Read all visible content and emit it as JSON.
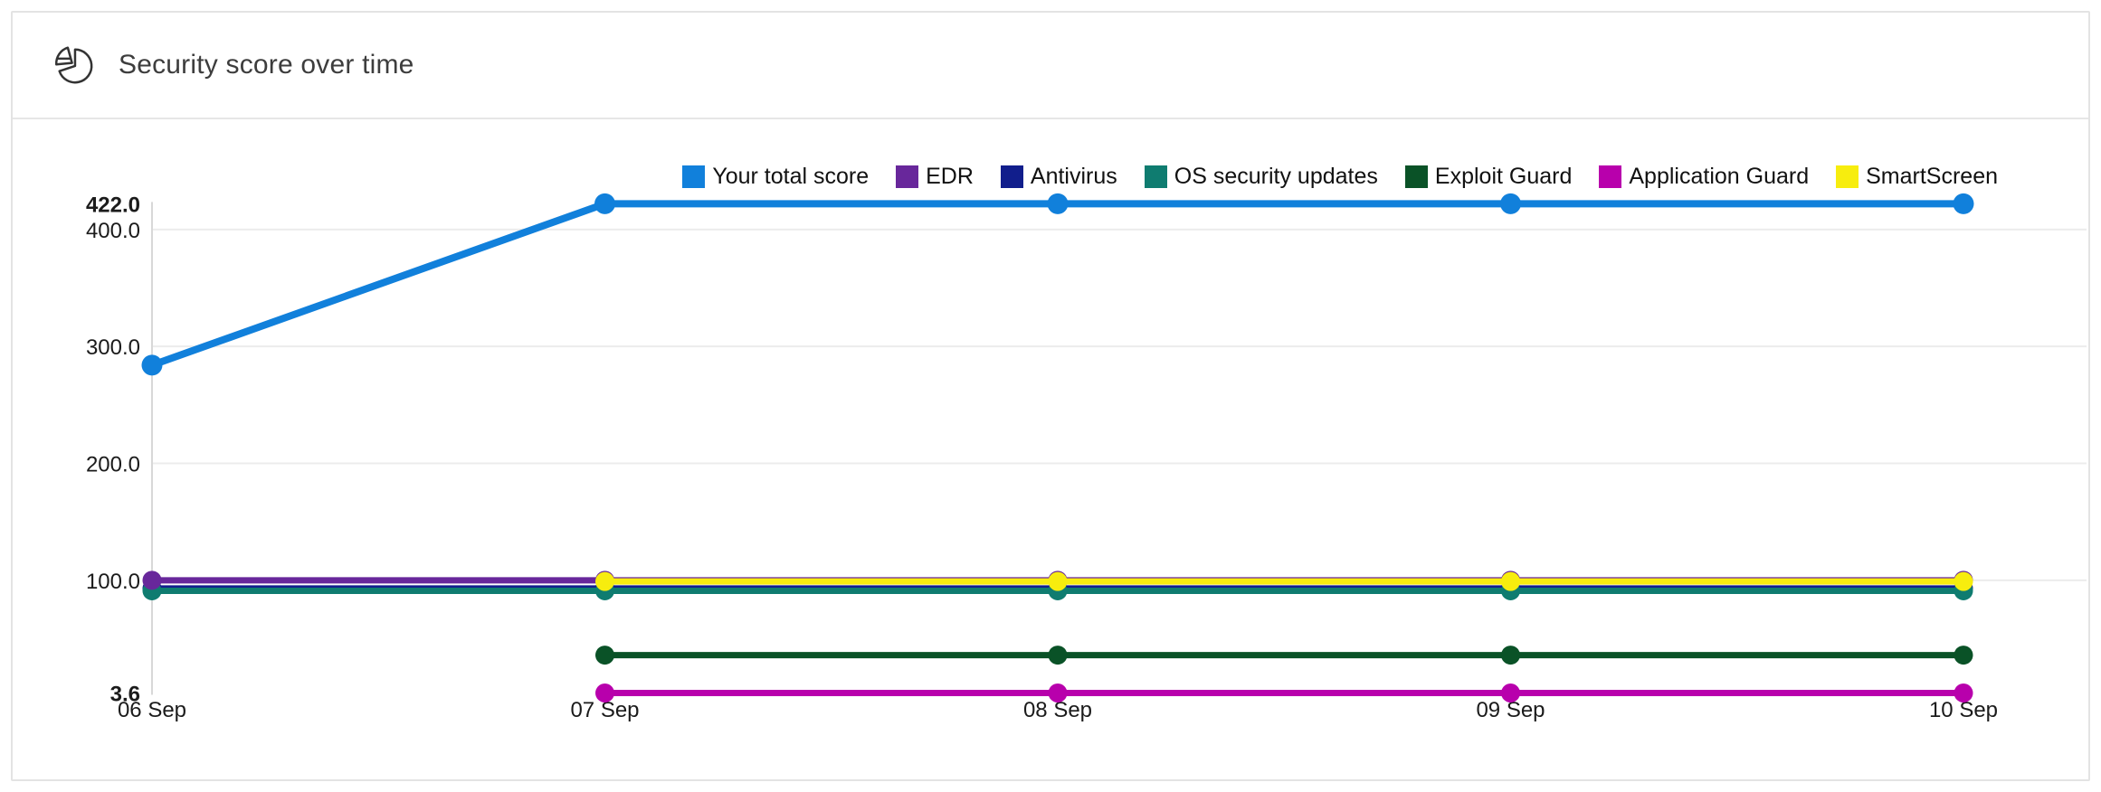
{
  "header": {
    "title": "Security score over time",
    "icon": "pie-chart-icon"
  },
  "chart_data": {
    "type": "line",
    "title": "Security score over time",
    "categories": [
      "06 Sep",
      "07 Sep",
      "08 Sep",
      "09 Sep",
      "10 Sep"
    ],
    "series": [
      {
        "name": "Your total score",
        "color": "#1180DB",
        "values": [
          284,
          422,
          422,
          422,
          422
        ]
      },
      {
        "name": "EDR",
        "color": "#68279B",
        "values": [
          100,
          100,
          100,
          100,
          100
        ]
      },
      {
        "name": "Antivirus",
        "color": "#111E8C",
        "values": [
          93,
          93,
          93,
          93,
          93
        ]
      },
      {
        "name": "OS security updates",
        "color": "#0F7C70",
        "values": [
          91,
          91,
          91,
          91,
          91
        ]
      },
      {
        "name": "Exploit Guard",
        "color": "#0A5227",
        "values": [
          null,
          36,
          36,
          36,
          36
        ]
      },
      {
        "name": "Application Guard",
        "color": "#B800AC",
        "values": [
          null,
          3.6,
          3.6,
          3.6,
          3.6
        ]
      },
      {
        "name": "SmartScreen",
        "color": "#F7ED0E",
        "values": [
          null,
          99,
          99,
          99,
          99
        ]
      }
    ],
    "y_ticks": [
      {
        "label": "422.0",
        "value": 422,
        "bold": true
      },
      {
        "label": "400.0",
        "value": 400,
        "bold": false
      },
      {
        "label": "300.0",
        "value": 300,
        "bold": false
      },
      {
        "label": "200.0",
        "value": 200,
        "bold": false
      },
      {
        "label": "100.0",
        "value": 100,
        "bold": false
      },
      {
        "label": "3.6",
        "value": 3.6,
        "bold": true
      }
    ],
    "gridline_values": [
      400,
      300,
      200,
      100
    ],
    "ylim": [
      3.6,
      422
    ],
    "xlabel": "",
    "ylabel": "",
    "grid": "horizontal",
    "legend_position": "top"
  }
}
